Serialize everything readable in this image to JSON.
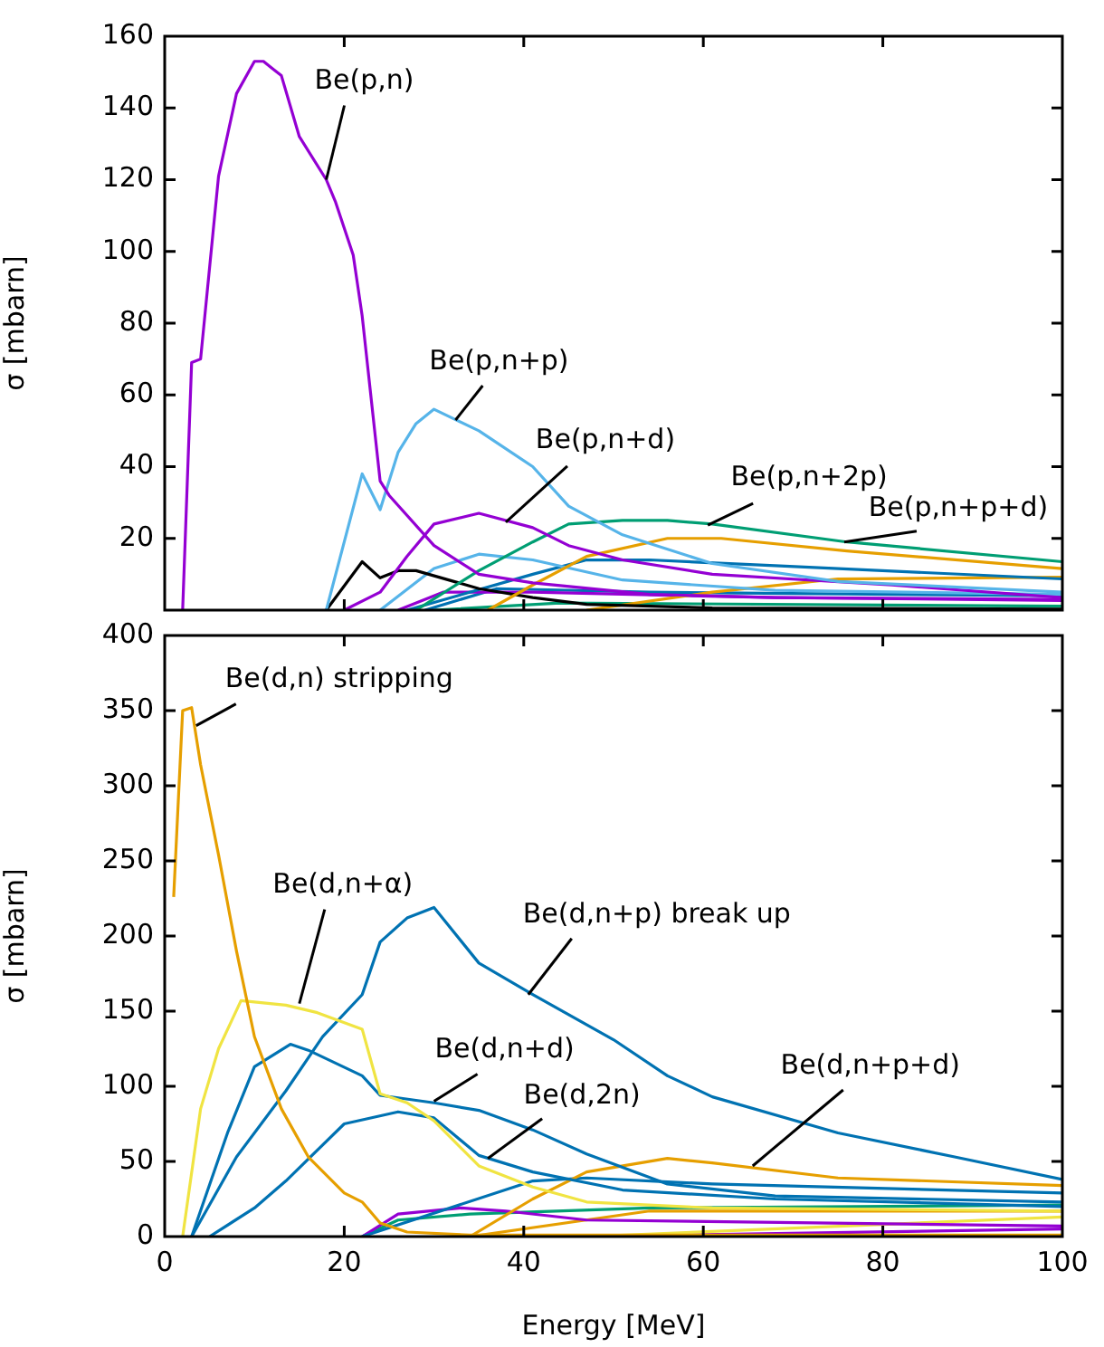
{
  "chart_data": [
    {
      "type": "line",
      "ylabel": "σ [mbarn]",
      "xlim": [
        0,
        100
      ],
      "xticks": [
        0,
        20,
        40,
        60,
        80,
        100
      ],
      "ylim": [
        0,
        160
      ],
      "yticks": [
        20,
        40,
        60,
        80,
        100,
        120,
        140,
        160
      ],
      "tick_labels": "y",
      "marker": "none",
      "series": [
        {
          "color": "#9400d3",
          "x": [
            2,
            3,
            4,
            6,
            8,
            10,
            11,
            12,
            13,
            15,
            18,
            19,
            21,
            22,
            24,
            25,
            30,
            35,
            41,
            54,
            68,
            100
          ],
          "values": [
            0,
            69,
            70,
            121,
            144,
            153,
            153,
            151,
            149,
            132,
            120,
            114,
            99,
            82,
            36,
            32,
            18,
            10,
            7.6,
            4.4,
            3.5,
            3
          ]
        },
        {
          "color": "#56b4e9",
          "x": [
            18,
            20,
            22,
            24,
            26,
            28,
            30,
            35,
            41,
            45,
            51,
            61,
            75,
            100
          ],
          "values": [
            0,
            19,
            38,
            28,
            44,
            52,
            56,
            50,
            40,
            29,
            21,
            13,
            8,
            5
          ]
        },
        {
          "color": "#9400d3",
          "x": [
            20,
            24,
            27,
            30,
            35,
            41,
            45,
            51,
            61,
            81,
            100
          ],
          "values": [
            0,
            5,
            15,
            24,
            27,
            23,
            18,
            14,
            10,
            7,
            3.5
          ]
        },
        {
          "color": "#009e73",
          "x": [
            28,
            35,
            41,
            45,
            51,
            56,
            61,
            76,
            100
          ],
          "values": [
            0,
            11,
            19,
            24,
            25,
            25,
            24,
            19,
            13.5
          ]
        },
        {
          "color": "#e69f00",
          "x": [
            36,
            41,
            47,
            56,
            62,
            76,
            100
          ],
          "values": [
            0,
            7,
            15,
            20,
            20,
            16.5,
            11.6
          ]
        },
        {
          "color": "#000000",
          "x": [
            18,
            22,
            24,
            26,
            28,
            35,
            41,
            47,
            61,
            100
          ],
          "values": [
            0,
            13.5,
            9,
            11,
            11,
            6,
            3.5,
            1.6,
            0.6,
            0.3
          ]
        },
        {
          "color": "#56b4e9",
          "x": [
            24,
            30,
            35,
            41,
            51,
            68,
            100
          ],
          "values": [
            0,
            11.6,
            15.6,
            14,
            8.4,
            5.5,
            4.4
          ]
        },
        {
          "color": "#0072b2",
          "x": [
            27,
            41,
            47,
            54,
            68,
            100
          ],
          "values": [
            0,
            10,
            14,
            14,
            12.4,
            8.7
          ]
        },
        {
          "color": "#e69f00",
          "x": [
            47,
            61,
            75,
            100
          ],
          "values": [
            0,
            5,
            8.7,
            9.2
          ]
        },
        {
          "color": "#9400d3",
          "x": [
            26,
            31,
            41,
            68,
            100
          ],
          "values": [
            0,
            5,
            5,
            3.5,
            2.7
          ]
        },
        {
          "color": "#0072b2",
          "x": [
            29,
            37,
            54,
            100
          ],
          "values": [
            0,
            6,
            5,
            4
          ]
        },
        {
          "color": "#009e73",
          "x": [
            30,
            44,
            100
          ],
          "values": [
            0,
            2,
            1.1
          ]
        }
      ],
      "annotations": [
        {
          "text": "Be(p,n)",
          "x": 18,
          "y": 120
        },
        {
          "text": "Be(p,n+p)",
          "x": 32.4,
          "y": 53
        },
        {
          "text": "Be(p,n+d)",
          "x": 38,
          "y": 24.5
        },
        {
          "text": "Be(p,n+2p)",
          "x": 60.5,
          "y": 23.7
        },
        {
          "text": "Be(p,n+p+d)",
          "x": 75.7,
          "y": 19
        }
      ]
    },
    {
      "type": "line",
      "xlabel": "Energy [MeV]",
      "ylabel": "σ [mbarn]",
      "xlim": [
        0,
        100
      ],
      "xticks": [
        0,
        20,
        40,
        60,
        80,
        100
      ],
      "ylim": [
        0,
        400
      ],
      "yticks": [
        0,
        50,
        100,
        150,
        200,
        250,
        300,
        350,
        400
      ],
      "marker": "none",
      "series": [
        {
          "color": "#e69f00",
          "x": [
            1,
            2,
            3,
            4,
            6,
            8,
            10,
            13,
            16,
            20,
            22,
            24,
            27,
            34,
            100
          ],
          "values": [
            226,
            350,
            352,
            314,
            254,
            190,
            133,
            85,
            53,
            29,
            23,
            9,
            3,
            1,
            1
          ]
        },
        {
          "color": "#f0e442",
          "x": [
            2,
            4,
            6,
            8.5,
            13.5,
            17,
            22,
            24,
            27,
            30,
            35,
            41,
            47,
            61,
            100
          ],
          "values": [
            0,
            85,
            125,
            157,
            154,
            149,
            138,
            95,
            89,
            77,
            47,
            33,
            23,
            19,
            17
          ]
        },
        {
          "color": "#0072b2",
          "x": [
            3,
            8,
            13.5,
            17.6,
            22,
            24,
            27,
            30,
            35,
            41,
            50,
            56,
            61,
            75,
            88,
            100
          ],
          "values": [
            0,
            53,
            97,
            133,
            161,
            196,
            212,
            219,
            182,
            161,
            131,
            107,
            93,
            69,
            53,
            38
          ]
        },
        {
          "color": "#0072b2",
          "x": [
            3,
            7,
            10,
            14,
            16,
            22,
            24,
            30,
            35,
            41,
            47,
            56,
            68,
            100
          ],
          "values": [
            0,
            69,
            113,
            128,
            124,
            107,
            94,
            89,
            84,
            71,
            55,
            35,
            27,
            23
          ]
        },
        {
          "color": "#0072b2",
          "x": [
            5,
            10,
            13.5,
            20,
            26,
            30,
            35,
            41,
            51,
            68,
            100
          ],
          "values": [
            0,
            19,
            37,
            75,
            83,
            79,
            54,
            43,
            31,
            25,
            20
          ]
        },
        {
          "color": "#e69f00",
          "x": [
            34,
            41,
            47,
            56,
            61,
            75,
            100
          ],
          "values": [
            0,
            25,
            43,
            52,
            49,
            39,
            34
          ]
        },
        {
          "color": "#0072b2",
          "x": [
            22,
            41,
            47,
            61,
            100
          ],
          "values": [
            0,
            37,
            39,
            35,
            29
          ]
        },
        {
          "color": "#9400d3",
          "x": [
            22,
            26,
            33,
            38,
            47,
            100
          ],
          "values": [
            0,
            15,
            19,
            17,
            11,
            7
          ]
        },
        {
          "color": "#009e73",
          "x": [
            22,
            26,
            34,
            54,
            100
          ],
          "values": [
            0,
            11,
            15,
            19,
            21
          ]
        },
        {
          "color": "#e69f00",
          "x": [
            34,
            54,
            100
          ],
          "values": [
            0,
            17,
            17
          ]
        },
        {
          "color": "#f0e442",
          "x": [
            47,
            100
          ],
          "values": [
            0,
            13
          ]
        },
        {
          "color": "#9400d3",
          "x": [
            47,
            100
          ],
          "values": [
            0,
            5
          ]
        }
      ],
      "annotations": [
        {
          "text": "Be(d,n) stripping",
          "x": 3.5,
          "y": 340
        },
        {
          "text": "Be(d,n+α)",
          "x": 15,
          "y": 155
        },
        {
          "text": "Be(d,n+p) break up",
          "x": 40.5,
          "y": 161
        },
        {
          "text": "Be(d,n+d)",
          "x": 30,
          "y": 90
        },
        {
          "text": "Be(d,2n)",
          "x": 36,
          "y": 52
        },
        {
          "text": "Be(d,n+p+d)",
          "x": 65.5,
          "y": 47
        }
      ]
    }
  ]
}
